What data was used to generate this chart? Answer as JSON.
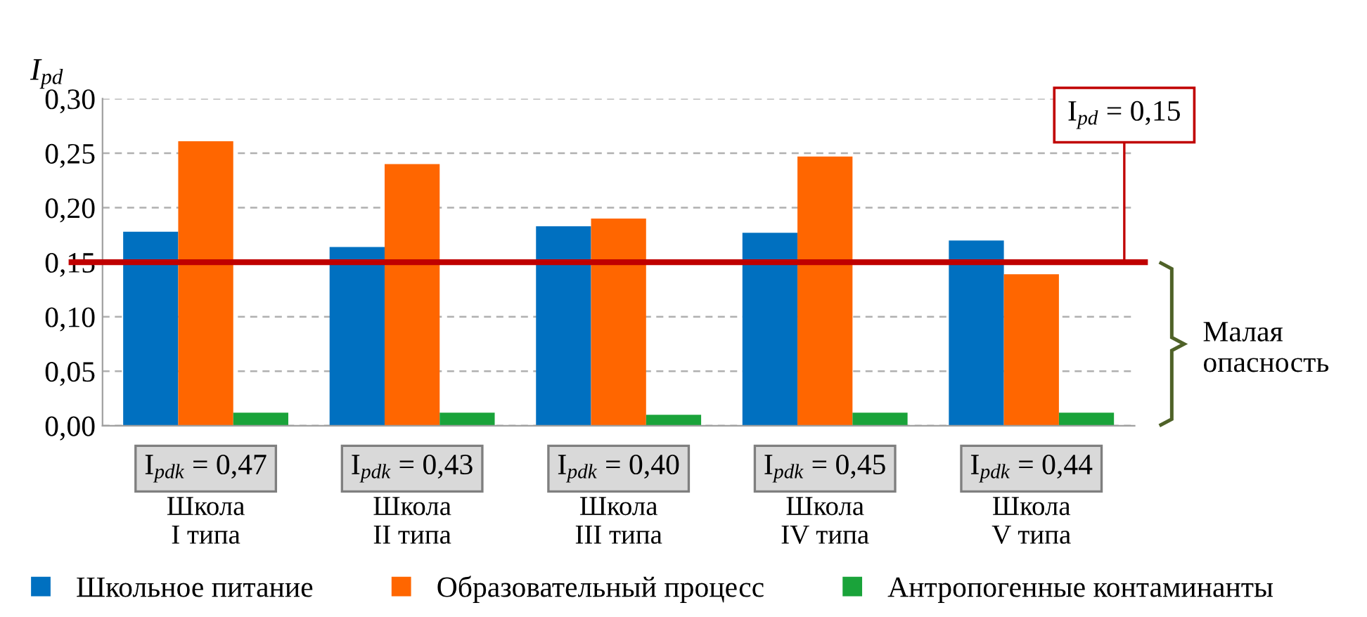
{
  "chart_data": {
    "type": "bar",
    "ylabel": "I$_{pd}$",
    "categories": [
      "Школа\nI типа",
      "Школа\nII типа",
      "Школа\nIII типа",
      "Школа\nIV типа",
      "Школа\nV типа"
    ],
    "series": [
      {
        "name": "Школьное питание",
        "color": "#0070c0",
        "values": [
          0.178,
          0.164,
          0.183,
          0.177,
          0.17
        ]
      },
      {
        "name": "Образовательный процесс",
        "color": "#ff6600",
        "values": [
          0.261,
          0.24,
          0.19,
          0.247,
          0.139
        ]
      },
      {
        "name": "Антропогенные контаминанты",
        "color": "#1aa33a",
        "values": [
          0.012,
          0.012,
          0.01,
          0.012,
          0.012
        ]
      }
    ],
    "ylim": [
      0,
      0.3
    ],
    "yticks": [
      {
        "value": 0,
        "label": "0,00"
      },
      {
        "value": 0.05,
        "label": "0,05"
      },
      {
        "value": 0.1,
        "label": "0,10"
      },
      {
        "value": 0.15,
        "label": "0,15"
      },
      {
        "value": 0.2,
        "label": "0,20"
      },
      {
        "value": 0.25,
        "label": "0,25"
      },
      {
        "value": 0.3,
        "label": "0,30"
      }
    ],
    "grid": "y",
    "legend": "bottom",
    "ref_lines": [
      {
        "axis": "y",
        "value": 0.15,
        "label": "I$_{pd}$ = 0,15",
        "color": "#c00000"
      }
    ],
    "annotations": [
      "I$_{pdk}$ = 0,47",
      "I$_{pdk}$ = 0,43",
      "I$_{pdk}$ = 0,40",
      "I$_{pdk}$ = 0,45",
      "I$_{pdk}$ = 0,44",
      "Малая\nопасность"
    ]
  }
}
